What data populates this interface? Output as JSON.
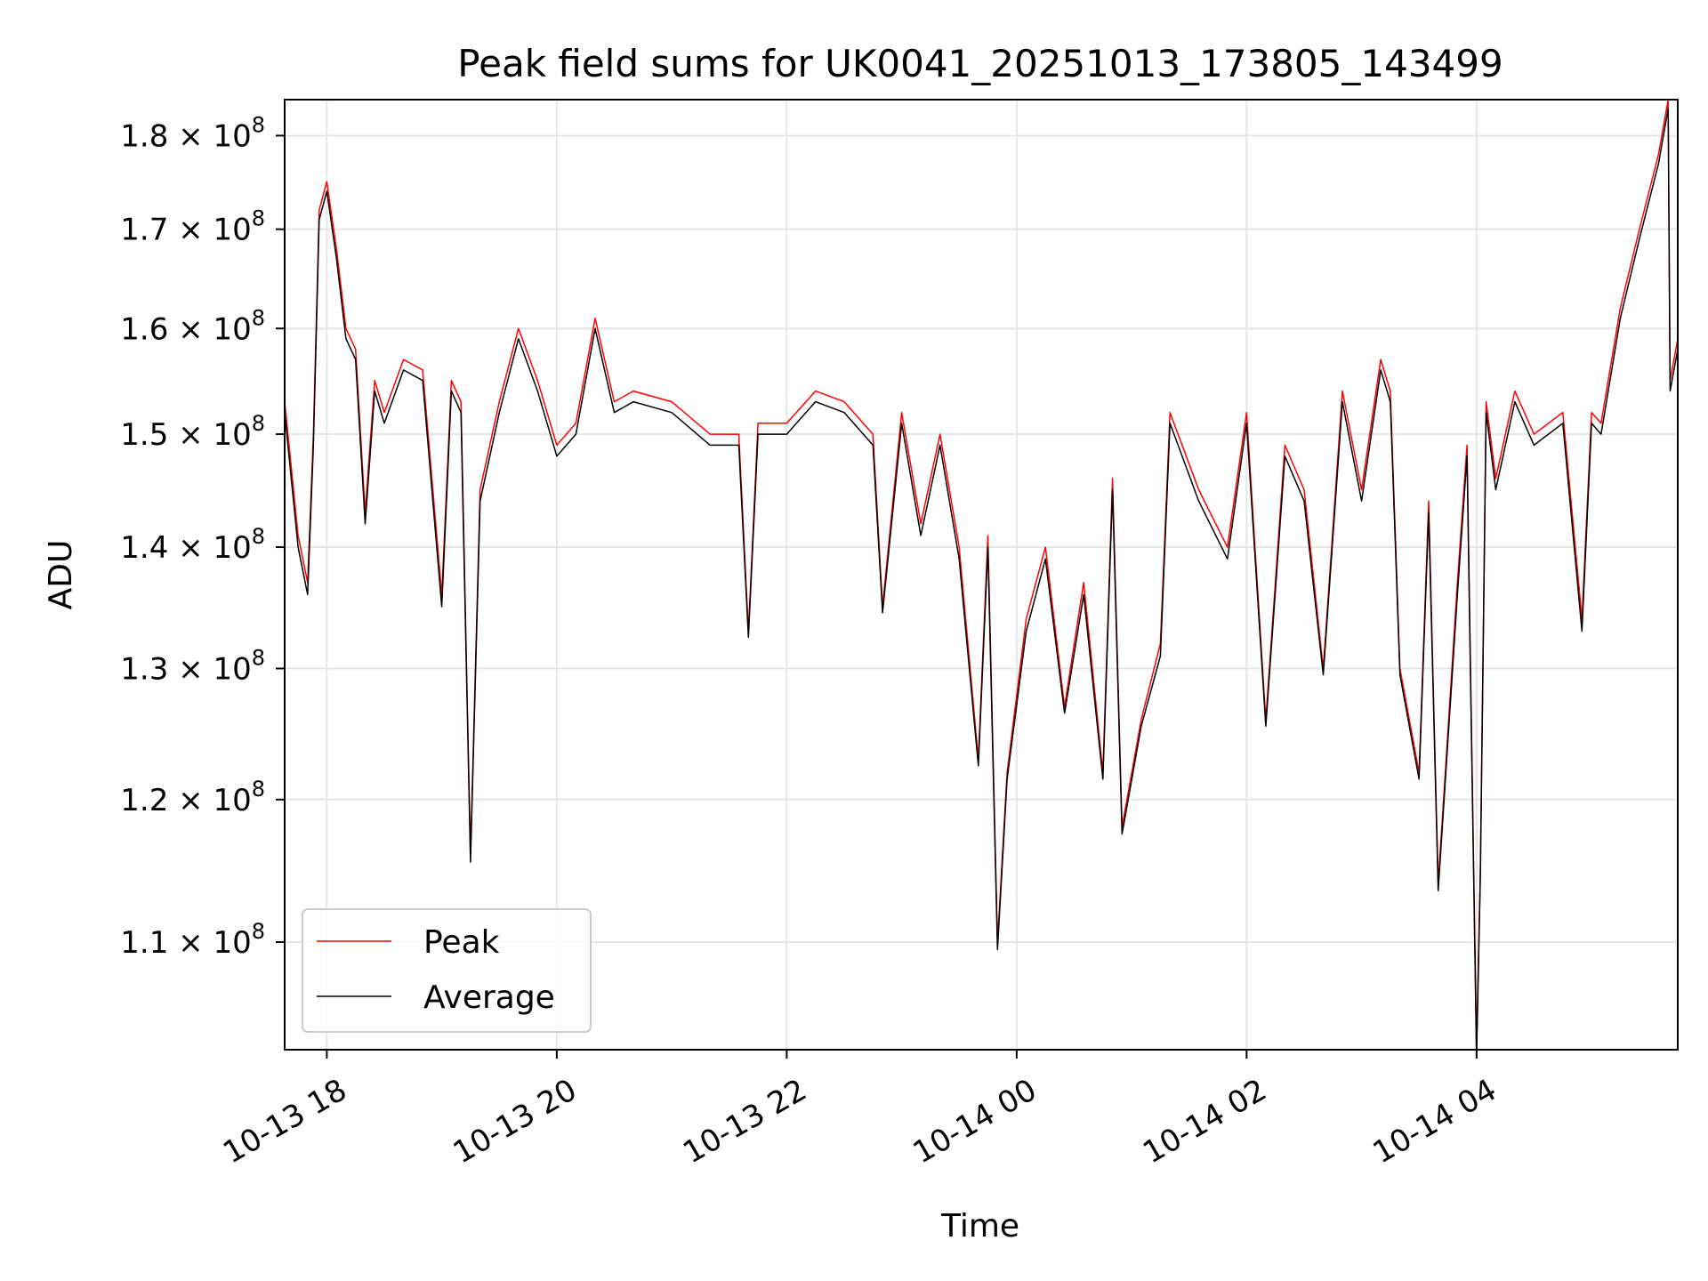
{
  "chart_data": {
    "type": "line",
    "title": "Peak field sums for UK0041_20251013_173805_143499",
    "xlabel": "Time",
    "ylabel": "ADU",
    "y_scale": "log",
    "grid": true,
    "legend_position": "lower-left",
    "xlim": [
      "2025-10-13 17:38",
      "2025-10-14 05:45"
    ],
    "ylim": [
      103000000,
      184000000
    ],
    "x_ticks": [
      {
        "value": "2025-10-13 18:00",
        "label": "10-13 18"
      },
      {
        "value": "2025-10-13 20:00",
        "label": "10-13 20"
      },
      {
        "value": "2025-10-13 22:00",
        "label": "10-13 22"
      },
      {
        "value": "2025-10-14 00:00",
        "label": "10-14 00"
      },
      {
        "value": "2025-10-14 02:00",
        "label": "10-14 02"
      },
      {
        "value": "2025-10-14 04:00",
        "label": "10-14 04"
      }
    ],
    "y_ticks": [
      {
        "value": 110000000,
        "mantissa": "1.1",
        "base": "10",
        "exp": "8"
      },
      {
        "value": 120000000,
        "mantissa": "1.2",
        "base": "10",
        "exp": "8"
      },
      {
        "value": 130000000,
        "mantissa": "1.3",
        "base": "10",
        "exp": "8"
      },
      {
        "value": 140000000,
        "mantissa": "1.4",
        "base": "10",
        "exp": "8"
      },
      {
        "value": 150000000,
        "mantissa": "1.5",
        "base": "10",
        "exp": "8"
      },
      {
        "value": 160000000,
        "mantissa": "1.6",
        "base": "10",
        "exp": "8"
      },
      {
        "value": 170000000,
        "mantissa": "1.7",
        "base": "10",
        "exp": "8"
      },
      {
        "value": 180000000,
        "mantissa": "1.8",
        "base": "10",
        "exp": "8"
      }
    ],
    "series": [
      {
        "name": "Peak",
        "color": "#ff0000",
        "x": [
          "2025-10-13 17:38",
          "2025-10-13 17:45",
          "2025-10-13 17:50",
          "2025-10-13 17:53",
          "2025-10-13 17:56",
          "2025-10-13 18:00",
          "2025-10-13 18:05",
          "2025-10-13 18:10",
          "2025-10-13 18:15",
          "2025-10-13 18:20",
          "2025-10-13 18:25",
          "2025-10-13 18:30",
          "2025-10-13 18:40",
          "2025-10-13 18:50",
          "2025-10-13 19:00",
          "2025-10-13 19:05",
          "2025-10-13 19:10",
          "2025-10-13 19:15",
          "2025-10-13 19:20",
          "2025-10-13 19:30",
          "2025-10-13 19:40",
          "2025-10-13 19:50",
          "2025-10-13 20:00",
          "2025-10-13 20:10",
          "2025-10-13 20:20",
          "2025-10-13 20:30",
          "2025-10-13 20:40",
          "2025-10-13 21:00",
          "2025-10-13 21:20",
          "2025-10-13 21:35",
          "2025-10-13 21:40",
          "2025-10-13 21:45",
          "2025-10-13 22:00",
          "2025-10-13 22:15",
          "2025-10-13 22:30",
          "2025-10-13 22:45",
          "2025-10-13 22:50",
          "2025-10-13 23:00",
          "2025-10-13 23:10",
          "2025-10-13 23:20",
          "2025-10-13 23:30",
          "2025-10-13 23:40",
          "2025-10-13 23:45",
          "2025-10-13 23:50",
          "2025-10-13 23:55",
          "2025-10-14 00:05",
          "2025-10-14 00:15",
          "2025-10-14 00:25",
          "2025-10-14 00:35",
          "2025-10-14 00:45",
          "2025-10-14 00:50",
          "2025-10-14 00:55",
          "2025-10-14 01:05",
          "2025-10-14 01:15",
          "2025-10-14 01:20",
          "2025-10-14 01:35",
          "2025-10-14 01:50",
          "2025-10-14 02:00",
          "2025-10-14 02:10",
          "2025-10-14 02:20",
          "2025-10-14 02:30",
          "2025-10-14 02:40",
          "2025-10-14 02:50",
          "2025-10-14 03:00",
          "2025-10-14 03:10",
          "2025-10-14 03:15",
          "2025-10-14 03:20",
          "2025-10-14 03:30",
          "2025-10-14 03:35",
          "2025-10-14 03:40",
          "2025-10-14 03:50",
          "2025-10-14 03:55",
          "2025-10-14 04:00",
          "2025-10-14 04:02",
          "2025-10-14 04:05",
          "2025-10-14 04:10",
          "2025-10-14 04:20",
          "2025-10-14 04:30",
          "2025-10-14 04:45",
          "2025-10-14 04:55",
          "2025-10-14 05:00",
          "2025-10-14 05:05",
          "2025-10-14 05:15",
          "2025-10-14 05:25",
          "2025-10-14 05:35",
          "2025-10-14 05:40",
          "2025-10-14 05:41",
          "2025-10-14 05:45"
        ],
        "y": [
          153000000,
          141000000,
          137000000,
          150000000,
          172000000,
          175000000,
          168000000,
          160000000,
          158000000,
          143000000,
          155000000,
          152000000,
          157000000,
          156000000,
          136000000,
          155000000,
          153000000,
          116000000,
          145000000,
          153000000,
          160000000,
          155000000,
          149000000,
          151000000,
          161000000,
          153000000,
          154000000,
          153000000,
          150000000,
          150000000,
          133000000,
          151000000,
          151000000,
          154000000,
          153000000,
          150000000,
          135000000,
          152000000,
          142000000,
          150000000,
          140000000,
          123000000,
          141000000,
          110000000,
          122000000,
          134000000,
          140000000,
          127000000,
          137000000,
          122000000,
          146000000,
          118000000,
          126000000,
          132000000,
          152000000,
          145000000,
          140000000,
          152000000,
          126000000,
          149000000,
          145000000,
          130000000,
          154000000,
          145000000,
          157000000,
          154000000,
          130000000,
          122000000,
          144000000,
          114000000,
          137000000,
          149000000,
          103000000,
          115000000,
          153000000,
          146000000,
          154000000,
          150000000,
          152000000,
          134000000,
          152000000,
          151000000,
          162000000,
          170000000,
          178000000,
          184000000,
          155000000,
          159000000
        ]
      },
      {
        "name": "Average",
        "color": "#000000",
        "x": [
          "2025-10-13 17:38",
          "2025-10-13 17:45",
          "2025-10-13 17:50",
          "2025-10-13 17:53",
          "2025-10-13 17:56",
          "2025-10-13 18:00",
          "2025-10-13 18:05",
          "2025-10-13 18:10",
          "2025-10-13 18:15",
          "2025-10-13 18:20",
          "2025-10-13 18:25",
          "2025-10-13 18:30",
          "2025-10-13 18:40",
          "2025-10-13 18:50",
          "2025-10-13 19:00",
          "2025-10-13 19:05",
          "2025-10-13 19:10",
          "2025-10-13 19:15",
          "2025-10-13 19:20",
          "2025-10-13 19:30",
          "2025-10-13 19:40",
          "2025-10-13 19:50",
          "2025-10-13 20:00",
          "2025-10-13 20:10",
          "2025-10-13 20:20",
          "2025-10-13 20:30",
          "2025-10-13 20:40",
          "2025-10-13 21:00",
          "2025-10-13 21:20",
          "2025-10-13 21:35",
          "2025-10-13 21:40",
          "2025-10-13 21:45",
          "2025-10-13 22:00",
          "2025-10-13 22:15",
          "2025-10-13 22:30",
          "2025-10-13 22:45",
          "2025-10-13 22:50",
          "2025-10-13 23:00",
          "2025-10-13 23:10",
          "2025-10-13 23:20",
          "2025-10-13 23:30",
          "2025-10-13 23:40",
          "2025-10-13 23:45",
          "2025-10-13 23:50",
          "2025-10-13 23:55",
          "2025-10-14 00:05",
          "2025-10-14 00:15",
          "2025-10-14 00:25",
          "2025-10-14 00:35",
          "2025-10-14 00:45",
          "2025-10-14 00:50",
          "2025-10-14 00:55",
          "2025-10-14 01:05",
          "2025-10-14 01:15",
          "2025-10-14 01:20",
          "2025-10-14 01:35",
          "2025-10-14 01:50",
          "2025-10-14 02:00",
          "2025-10-14 02:10",
          "2025-10-14 02:20",
          "2025-10-14 02:30",
          "2025-10-14 02:40",
          "2025-10-14 02:50",
          "2025-10-14 03:00",
          "2025-10-14 03:10",
          "2025-10-14 03:15",
          "2025-10-14 03:20",
          "2025-10-14 03:30",
          "2025-10-14 03:35",
          "2025-10-14 03:40",
          "2025-10-14 03:50",
          "2025-10-14 03:55",
          "2025-10-14 04:00",
          "2025-10-14 04:02",
          "2025-10-14 04:05",
          "2025-10-14 04:10",
          "2025-10-14 04:20",
          "2025-10-14 04:30",
          "2025-10-14 04:45",
          "2025-10-14 04:55",
          "2025-10-14 05:00",
          "2025-10-14 05:05",
          "2025-10-14 05:15",
          "2025-10-14 05:25",
          "2025-10-14 05:35",
          "2025-10-14 05:40",
          "2025-10-14 05:41",
          "2025-10-14 05:45"
        ],
        "y": [
          152000000,
          140000000,
          136000000,
          149000000,
          171000000,
          174000000,
          167000000,
          159000000,
          157000000,
          142000000,
          154000000,
          151000000,
          156000000,
          155000000,
          135000000,
          154000000,
          152000000,
          115500000,
          144000000,
          152000000,
          159000000,
          154000000,
          148000000,
          150000000,
          160000000,
          152000000,
          153000000,
          152000000,
          149000000,
          149000000,
          132500000,
          150000000,
          150000000,
          153000000,
          152000000,
          149000000,
          134500000,
          151000000,
          141000000,
          149000000,
          139000000,
          122500000,
          140000000,
          109500000,
          121500000,
          133000000,
          139000000,
          126500000,
          136000000,
          121500000,
          145000000,
          117500000,
          125500000,
          131000000,
          151000000,
          144000000,
          139000000,
          151000000,
          125500000,
          148000000,
          144000000,
          129500000,
          153000000,
          144000000,
          156000000,
          153000000,
          129500000,
          121500000,
          143000000,
          113500000,
          136000000,
          148000000,
          102500000,
          114500000,
          152000000,
          145000000,
          153000000,
          149000000,
          151000000,
          133000000,
          151000000,
          150000000,
          161000000,
          169000000,
          177000000,
          183000000,
          154000000,
          158000000
        ]
      }
    ]
  }
}
